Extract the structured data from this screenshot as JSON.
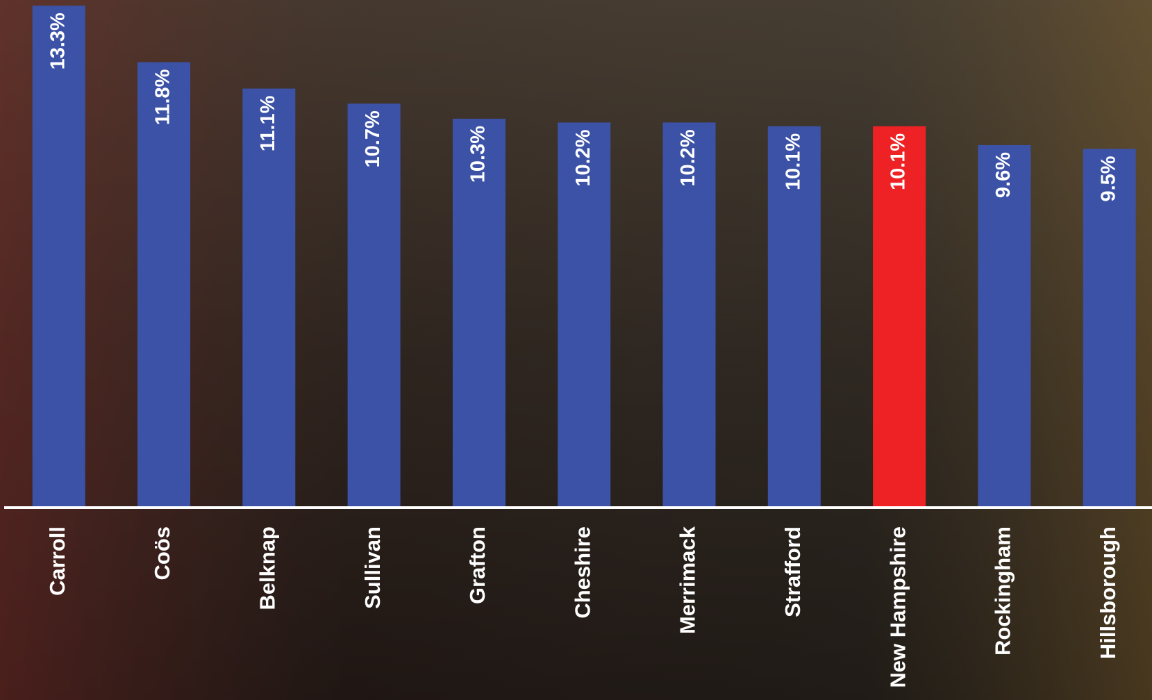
{
  "chart_data": {
    "type": "bar",
    "categories": [
      "Carroll",
      "Coös",
      "Belknap",
      "Sullivan",
      "Grafton",
      "Cheshire",
      "Merrimack",
      "Strafford",
      "New Hampshire",
      "Rockingham",
      "Hillsborough"
    ],
    "values": [
      13.3,
      11.8,
      11.1,
      10.7,
      10.3,
      10.2,
      10.2,
      10.1,
      10.1,
      9.6,
      9.5
    ],
    "value_labels": [
      "13.3%",
      "11.8%",
      "11.1%",
      "10.7%",
      "10.3%",
      "10.2%",
      "10.2%",
      "10.1%",
      "10.1%",
      "9.6%",
      "9.5%"
    ],
    "colors": [
      "#3b52a6",
      "#3b52a6",
      "#3b52a6",
      "#3b52a6",
      "#3b52a6",
      "#3b52a6",
      "#3b52a6",
      "#3b52a6",
      "#ee2224",
      "#3b52a6",
      "#3b52a6"
    ],
    "ylim": [
      0,
      13.45
    ]
  }
}
